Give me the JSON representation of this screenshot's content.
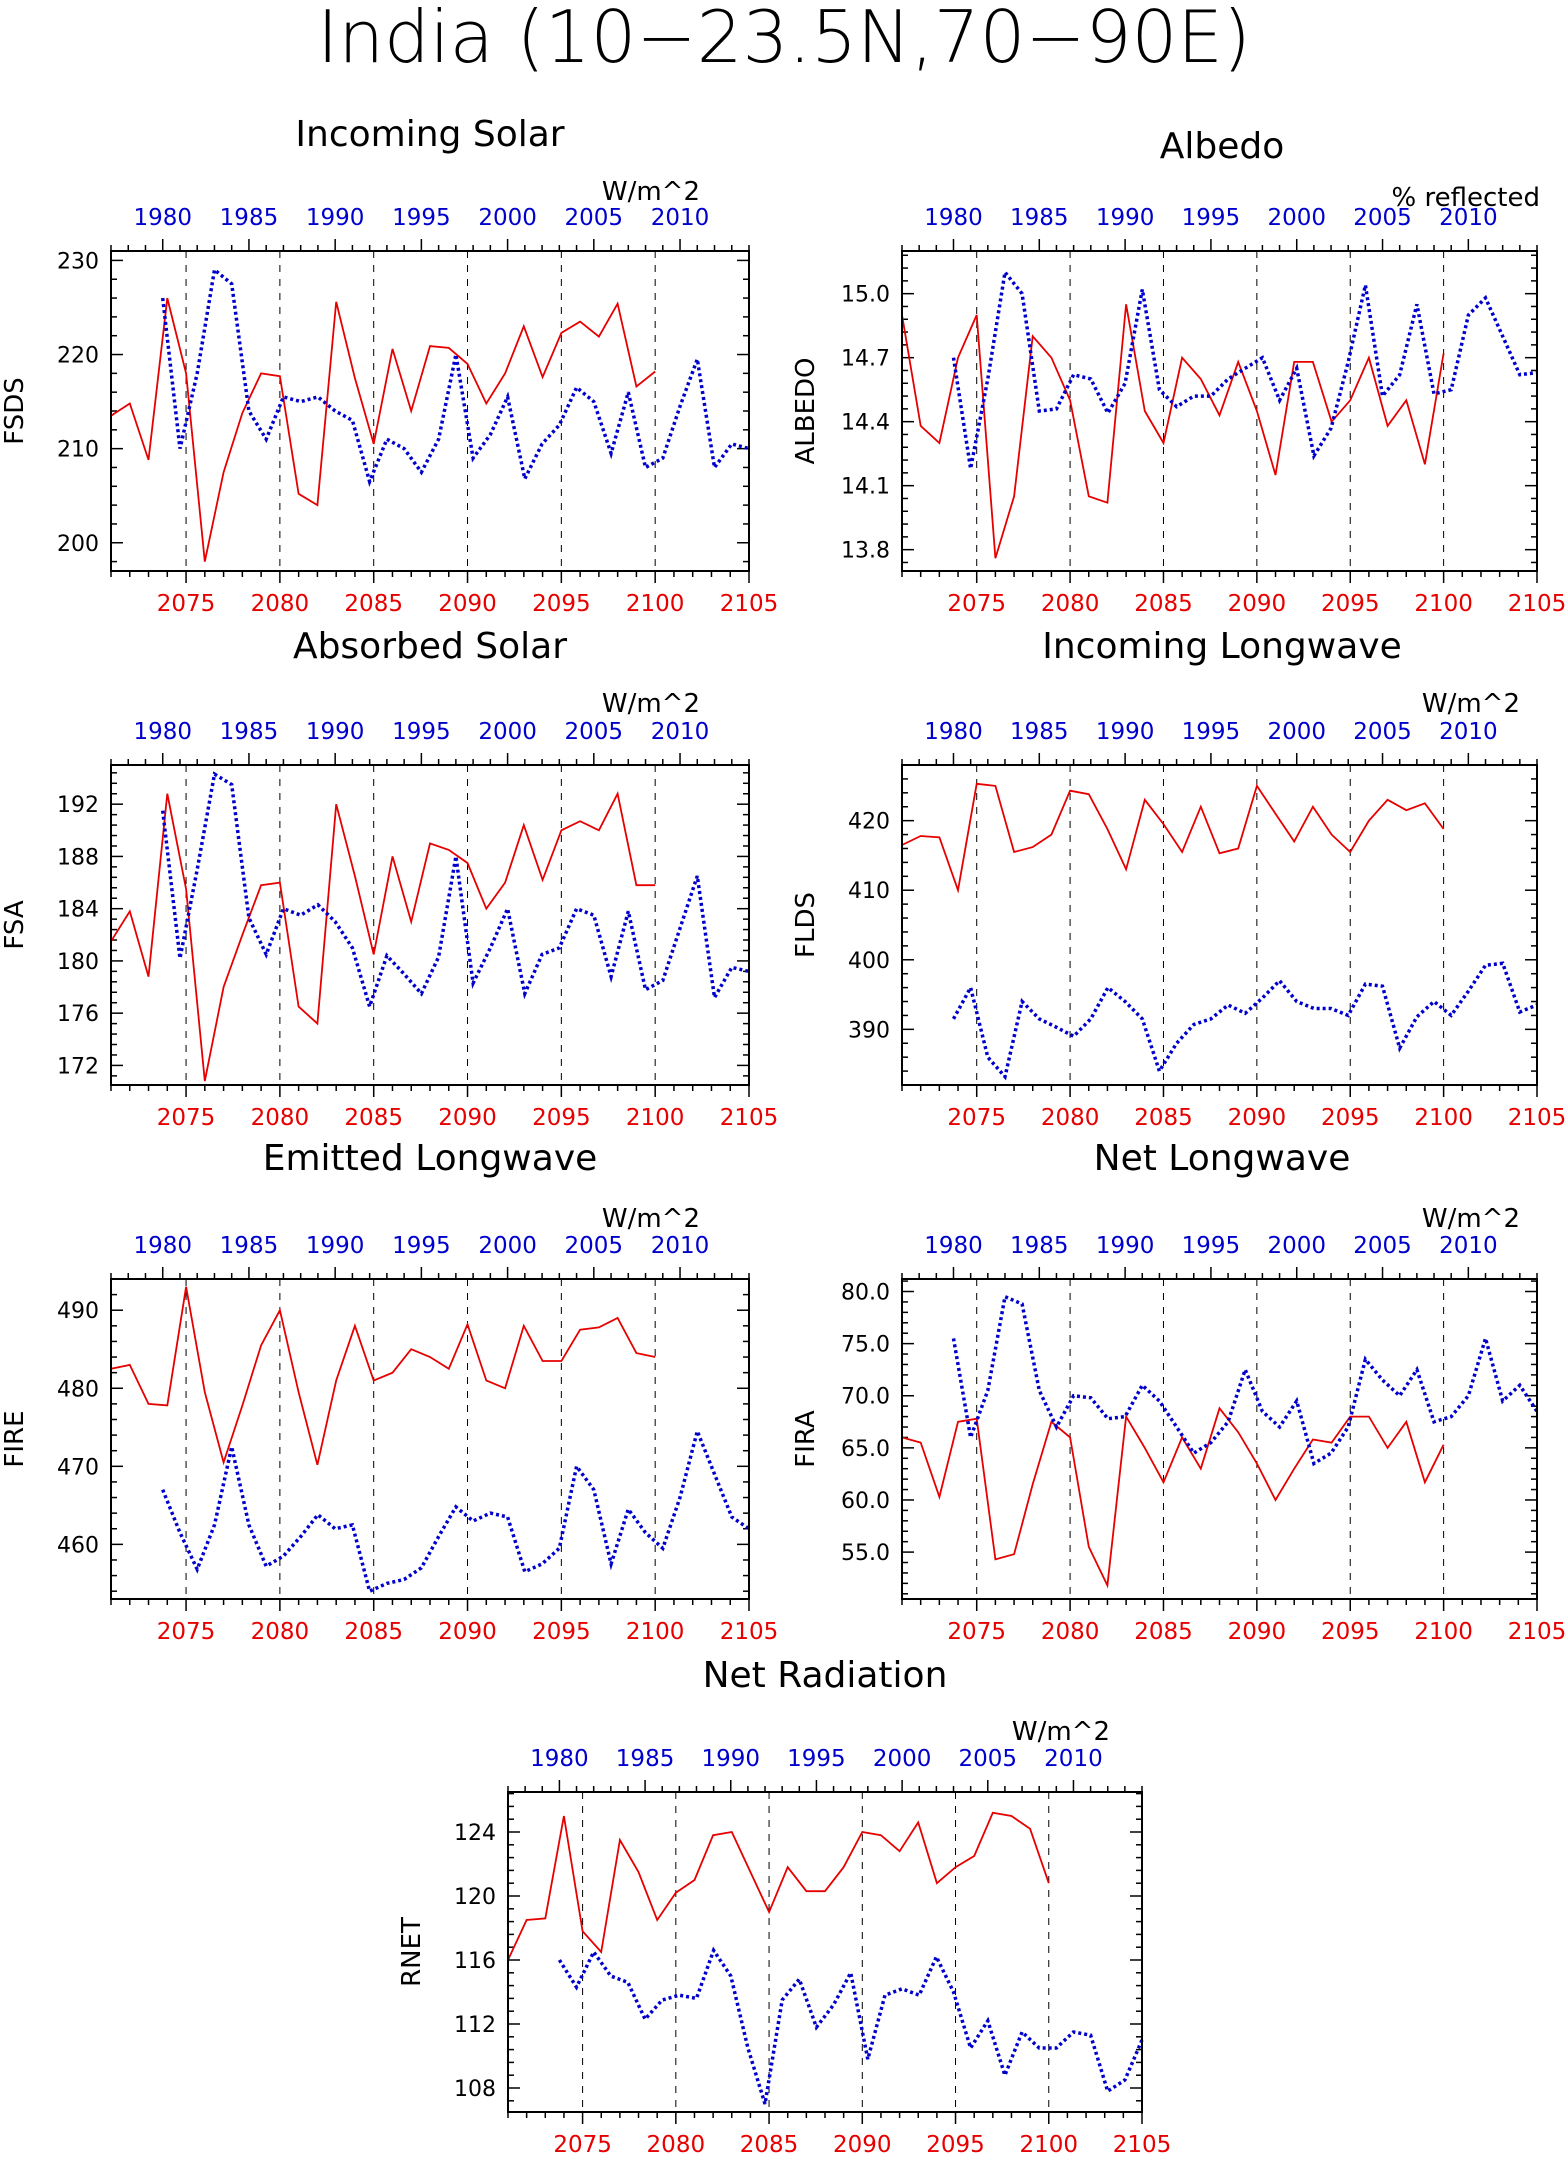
{
  "main_title": "India (10−23.5N,70−90E)",
  "colors": {
    "future": "#e60000",
    "historical": "#0000cc",
    "axis": "#000000"
  },
  "top_axis_labels": [
    "1980",
    "1985",
    "1990",
    "1995",
    "2000",
    "2005",
    "2010"
  ],
  "bottom_axis_labels": [
    "2075",
    "2080",
    "2085",
    "2090",
    "2095",
    "2100",
    "2105"
  ],
  "chart_data": [
    {
      "type": "line",
      "title": "Incoming Solar",
      "ylabel": "FSDS",
      "units": "W/m^2",
      "ylim": [
        197,
        231
      ],
      "yticks": [
        200,
        210,
        220,
        230
      ],
      "ytick_labels": [
        "200",
        "210",
        "220",
        "230"
      ],
      "x_future": [
        2071,
        2072,
        2073,
        2074,
        2075,
        2076,
        2077,
        2078,
        2079,
        2080,
        2081,
        2082,
        2083,
        2084,
        2085,
        2086,
        2087,
        2088,
        2089,
        2090,
        2091,
        2092,
        2093,
        2094,
        2095,
        2096,
        2097,
        2098,
        2099,
        2100
      ],
      "x_historical": [
        1980,
        1981,
        1982,
        1983,
        1984,
        1985,
        1986,
        1987,
        1988,
        1989,
        1990,
        1991,
        1992,
        1993,
        1994,
        1995,
        1996,
        1997,
        1998,
        1999,
        2000,
        2001,
        2002,
        2003,
        2004,
        2005,
        2006,
        2007,
        2008,
        2009,
        2010,
        2011,
        2012,
        2013,
        2014
      ],
      "series": [
        {
          "values": [
            213.5,
            214.8,
            208.8,
            226.0,
            218.0,
            198.0,
            207.5,
            213.8,
            218.0,
            217.7,
            205.2,
            204.0,
            225.6,
            217.5,
            210.5,
            220.6,
            214.0,
            220.9,
            220.7,
            219.0,
            214.8,
            218.0,
            223.0,
            217.6,
            222.3,
            223.5,
            221.9,
            225.4,
            216.6,
            218.2
          ]
        },
        {
          "values": [
            226.0,
            210.0,
            218.0,
            229.0,
            227.5,
            214.0,
            211.0,
            215.5,
            215.0,
            215.5,
            214.0,
            213.0,
            206.5,
            211.0,
            210.0,
            207.5,
            211.0,
            220.0,
            209.0,
            211.5,
            215.5,
            206.8,
            210.5,
            212.5,
            216.5,
            215.0,
            209.5,
            216.0,
            208.0,
            209.0,
            214.5,
            219.5,
            208.0,
            210.5,
            210.0
          ]
        }
      ]
    },
    {
      "type": "line",
      "title": "Albedo",
      "ylabel": "ALBEDO",
      "units": "% reflected",
      "ylim": [
        13.7,
        15.2
      ],
      "yticks": [
        13.8,
        14.1,
        14.4,
        14.7,
        15.0
      ],
      "ytick_labels": [
        "13.8",
        "14.1",
        "14.4",
        "14.7",
        "15.0"
      ],
      "x_future": [
        2071,
        2072,
        2073,
        2074,
        2075,
        2076,
        2077,
        2078,
        2079,
        2080,
        2081,
        2082,
        2083,
        2084,
        2085,
        2086,
        2087,
        2088,
        2089,
        2090,
        2091,
        2092,
        2093,
        2094,
        2095,
        2096,
        2097,
        2098,
        2099,
        2100
      ],
      "x_historical": [
        1980,
        1981,
        1982,
        1983,
        1984,
        1985,
        1986,
        1987,
        1988,
        1989,
        1990,
        1991,
        1992,
        1993,
        1994,
        1995,
        1996,
        1997,
        1998,
        1999,
        2000,
        2001,
        2002,
        2003,
        2004,
        2005,
        2006,
        2007,
        2008,
        2009,
        2010,
        2011,
        2012,
        2013,
        2014
      ],
      "series": [
        {
          "values": [
            14.9,
            14.38,
            14.3,
            14.7,
            14.9,
            13.76,
            14.05,
            14.8,
            14.7,
            14.5,
            14.05,
            14.02,
            14.95,
            14.45,
            14.3,
            14.7,
            14.6,
            14.43,
            14.68,
            14.45,
            14.15,
            14.68,
            14.68,
            14.4,
            14.5,
            14.7,
            14.38,
            14.5,
            14.2,
            14.72
          ]
        },
        {
          "values": [
            14.7,
            14.18,
            14.6,
            15.1,
            15.0,
            14.45,
            14.46,
            14.62,
            14.6,
            14.44,
            14.58,
            15.02,
            14.55,
            14.47,
            14.52,
            14.52,
            14.6,
            14.65,
            14.7,
            14.5,
            14.65,
            14.24,
            14.37,
            14.68,
            15.04,
            14.52,
            14.62,
            14.95,
            14.53,
            14.55,
            14.9,
            14.98,
            14.8,
            14.62,
            14.63
          ]
        }
      ]
    },
    {
      "type": "line",
      "title": "Absorbed Solar",
      "ylabel": "FSA",
      "units": "W/m^2",
      "ylim": [
        170.5,
        195
      ],
      "yticks": [
        172,
        176,
        180,
        184,
        188,
        192
      ],
      "ytick_labels": [
        "172",
        "176",
        "180",
        "184",
        "188",
        "192"
      ],
      "x_future": [
        2071,
        2072,
        2073,
        2074,
        2075,
        2076,
        2077,
        2078,
        2079,
        2080,
        2081,
        2082,
        2083,
        2084,
        2085,
        2086,
        2087,
        2088,
        2089,
        2090,
        2091,
        2092,
        2093,
        2094,
        2095,
        2096,
        2097,
        2098,
        2099,
        2100
      ],
      "x_historical": [
        1980,
        1981,
        1982,
        1983,
        1984,
        1985,
        1986,
        1987,
        1988,
        1989,
        1990,
        1991,
        1992,
        1993,
        1994,
        1995,
        1996,
        1997,
        1998,
        1999,
        2000,
        2001,
        2002,
        2003,
        2004,
        2005,
        2006,
        2007,
        2008,
        2009,
        2010,
        2011,
        2012,
        2013,
        2014
      ],
      "series": [
        {
          "values": [
            181.5,
            183.8,
            178.8,
            192.8,
            185.5,
            170.8,
            178.0,
            182.0,
            185.8,
            186.0,
            176.5,
            175.2,
            192.0,
            186.5,
            180.5,
            188.0,
            183.0,
            189.0,
            188.5,
            187.5,
            184.0,
            186.0,
            190.4,
            186.2,
            190.0,
            190.7,
            190.0,
            192.8,
            185.8,
            185.8
          ]
        },
        {
          "values": [
            191.5,
            180.2,
            187.0,
            194.3,
            193.5,
            183.3,
            180.5,
            184.0,
            183.5,
            184.3,
            183.0,
            181.0,
            176.5,
            180.4,
            179.0,
            177.5,
            180.3,
            188.0,
            178.3,
            181.0,
            184.0,
            177.5,
            180.5,
            181.0,
            184.0,
            183.5,
            178.8,
            183.8,
            177.8,
            178.5,
            182.5,
            186.5,
            177.2,
            179.5,
            179.2
          ]
        }
      ]
    },
    {
      "type": "line",
      "title": "Incoming Longwave",
      "ylabel": "FLDS",
      "units": "W/m^2",
      "ylim": [
        382,
        428
      ],
      "yticks": [
        390,
        400,
        410,
        420
      ],
      "ytick_labels": [
        "390",
        "400",
        "410",
        "420"
      ],
      "x_future": [
        2071,
        2072,
        2073,
        2074,
        2075,
        2076,
        2077,
        2078,
        2079,
        2080,
        2081,
        2082,
        2083,
        2084,
        2085,
        2086,
        2087,
        2088,
        2089,
        2090,
        2091,
        2092,
        2093,
        2094,
        2095,
        2096,
        2097,
        2098,
        2099,
        2100
      ],
      "x_historical": [
        1980,
        1981,
        1982,
        1983,
        1984,
        1985,
        1986,
        1987,
        1988,
        1989,
        1990,
        1991,
        1992,
        1993,
        1994,
        1995,
        1996,
        1997,
        1998,
        1999,
        2000,
        2001,
        2002,
        2003,
        2004,
        2005,
        2006,
        2007,
        2008,
        2009,
        2010,
        2011,
        2012,
        2013,
        2014
      ],
      "series": [
        {
          "values": [
            416.5,
            417.8,
            417.6,
            410.0,
            425.3,
            425.0,
            415.5,
            416.2,
            418.0,
            424.3,
            423.8,
            418.8,
            413.0,
            423.0,
            419.5,
            415.5,
            422.0,
            415.3,
            416.0,
            425.0,
            421.0,
            417.0,
            422.0,
            418.0,
            415.5,
            420.0,
            423.0,
            421.5,
            422.5,
            418.8
          ]
        },
        {
          "values": [
            391.5,
            396.0,
            386.0,
            383.2,
            394.0,
            391.5,
            390.3,
            389.0,
            391.5,
            396.0,
            394.0,
            391.5,
            384.0,
            388.0,
            390.7,
            391.5,
            393.5,
            392.3,
            394.5,
            397.0,
            394.0,
            393.0,
            393.0,
            392.0,
            396.5,
            396.2,
            387.3,
            391.8,
            394.0,
            392.0,
            395.5,
            399.2,
            399.5,
            392.5,
            393.5
          ]
        }
      ]
    },
    {
      "type": "line",
      "title": "Emitted Longwave",
      "ylabel": "FIRE",
      "units": "W/m^2",
      "ylim": [
        453,
        494
      ],
      "yticks": [
        460,
        470,
        480,
        490
      ],
      "ytick_labels": [
        "460",
        "470",
        "480",
        "490"
      ],
      "x_future": [
        2071,
        2072,
        2073,
        2074,
        2075,
        2076,
        2077,
        2078,
        2079,
        2080,
        2081,
        2082,
        2083,
        2084,
        2085,
        2086,
        2087,
        2088,
        2089,
        2090,
        2091,
        2092,
        2093,
        2094,
        2095,
        2096,
        2097,
        2098,
        2099,
        2100
      ],
      "x_historical": [
        1980,
        1981,
        1982,
        1983,
        1984,
        1985,
        1986,
        1987,
        1988,
        1989,
        1990,
        1991,
        1992,
        1993,
        1994,
        1995,
        1996,
        1997,
        1998,
        1999,
        2000,
        2001,
        2002,
        2003,
        2004,
        2005,
        2006,
        2007,
        2008,
        2009,
        2010,
        2011,
        2012,
        2013,
        2014
      ],
      "series": [
        {
          "values": [
            482.5,
            483.0,
            478.0,
            477.8,
            493.0,
            479.5,
            470.5,
            477.8,
            485.5,
            490.0,
            479.5,
            470.2,
            481.0,
            488.0,
            481.0,
            482.0,
            485.0,
            484.0,
            482.5,
            488.2,
            481.0,
            480.0,
            488.0,
            483.5,
            483.5,
            487.5,
            487.8,
            489.0,
            484.5,
            484.0
          ]
        },
        {
          "values": [
            467.0,
            461.5,
            456.8,
            462.5,
            472.5,
            462.5,
            457.2,
            458.5,
            461.0,
            463.8,
            462.0,
            462.5,
            454.0,
            455.0,
            455.5,
            457.0,
            461.0,
            464.8,
            463.0,
            464.0,
            463.5,
            456.5,
            457.5,
            459.5,
            470.0,
            467.0,
            457.5,
            464.5,
            461.5,
            459.5,
            466.0,
            474.5,
            469.0,
            463.5,
            462.0
          ]
        }
      ]
    },
    {
      "type": "line",
      "title": "Net Longwave",
      "ylabel": "FIRA",
      "units": "W/m^2",
      "ylim": [
        50.5,
        81.2
      ],
      "yticks": [
        55,
        60,
        65,
        70,
        75,
        80
      ],
      "ytick_labels": [
        "55.0",
        "60.0",
        "65.0",
        "70.0",
        "75.0",
        "80.0"
      ],
      "x_future": [
        2071,
        2072,
        2073,
        2074,
        2075,
        2076,
        2077,
        2078,
        2079,
        2080,
        2081,
        2082,
        2083,
        2084,
        2085,
        2086,
        2087,
        2088,
        2089,
        2090,
        2091,
        2092,
        2093,
        2094,
        2095,
        2096,
        2097,
        2098,
        2099,
        2100
      ],
      "x_historical": [
        1980,
        1981,
        1982,
        1983,
        1984,
        1985,
        1986,
        1987,
        1988,
        1989,
        1990,
        1991,
        1992,
        1993,
        1994,
        1995,
        1996,
        1997,
        1998,
        1999,
        2000,
        2001,
        2002,
        2003,
        2004,
        2005,
        2006,
        2007,
        2008,
        2009,
        2010,
        2011,
        2012,
        2013,
        2014
      ],
      "series": [
        {
          "values": [
            66.0,
            65.5,
            60.3,
            67.5,
            67.8,
            54.3,
            54.8,
            61.5,
            67.5,
            66.0,
            55.5,
            51.8,
            68.0,
            65.0,
            61.7,
            66.0,
            63.0,
            68.8,
            66.5,
            63.5,
            60.0,
            63.0,
            65.8,
            65.5,
            68.0,
            68.0,
            65.0,
            67.5,
            61.7,
            65.3
          ]
        },
        {
          "values": [
            75.5,
            66.0,
            70.5,
            79.5,
            78.8,
            70.5,
            67.0,
            70.0,
            69.8,
            67.8,
            68.0,
            71.0,
            69.5,
            67.0,
            64.5,
            65.5,
            67.5,
            72.5,
            68.5,
            67.0,
            69.5,
            63.5,
            64.5,
            67.0,
            73.5,
            71.5,
            70.0,
            72.5,
            67.5,
            68.0,
            70.0,
            75.5,
            69.5,
            71.0,
            68.5
          ]
        }
      ]
    },
    {
      "type": "line",
      "title": "Net Radiation",
      "ylabel": "RNET",
      "units": "W/m^2",
      "ylim": [
        106.5,
        126.5
      ],
      "yticks": [
        108,
        112,
        116,
        120,
        124
      ],
      "ytick_labels": [
        "108",
        "112",
        "116",
        "120",
        "124"
      ],
      "x_future": [
        2071,
        2072,
        2073,
        2074,
        2075,
        2076,
        2077,
        2078,
        2079,
        2080,
        2081,
        2082,
        2083,
        2084,
        2085,
        2086,
        2087,
        2088,
        2089,
        2090,
        2091,
        2092,
        2093,
        2094,
        2095,
        2096,
        2097,
        2098,
        2099,
        2100
      ],
      "x_historical": [
        1980,
        1981,
        1982,
        1983,
        1984,
        1985,
        1986,
        1987,
        1988,
        1989,
        1990,
        1991,
        1992,
        1993,
        1994,
        1995,
        1996,
        1997,
        1998,
        1999,
        2000,
        2001,
        2002,
        2003,
        2004,
        2005,
        2006,
        2007,
        2008,
        2009,
        2010,
        2011,
        2012,
        2013,
        2014
      ],
      "series": [
        {
          "values": [
            116.0,
            118.5,
            118.6,
            125.0,
            117.8,
            116.5,
            123.5,
            121.5,
            118.5,
            120.2,
            121.0,
            123.8,
            124.0,
            121.5,
            119.0,
            121.8,
            120.3,
            120.3,
            121.8,
            124.0,
            123.8,
            122.8,
            124.6,
            120.8,
            121.8,
            122.5,
            125.2,
            125.0,
            124.2,
            120.8
          ]
        },
        {
          "values": [
            116.0,
            114.3,
            116.5,
            115.0,
            114.6,
            112.3,
            113.5,
            113.8,
            113.6,
            116.6,
            115.0,
            110.5,
            107.0,
            113.5,
            114.8,
            111.8,
            113.2,
            115.2,
            109.8,
            113.8,
            114.2,
            113.8,
            116.2,
            114.0,
            110.5,
            112.2,
            108.8,
            111.5,
            110.5,
            110.5,
            111.5,
            111.3,
            107.8,
            108.5,
            111.0
          ]
        }
      ]
    }
  ]
}
